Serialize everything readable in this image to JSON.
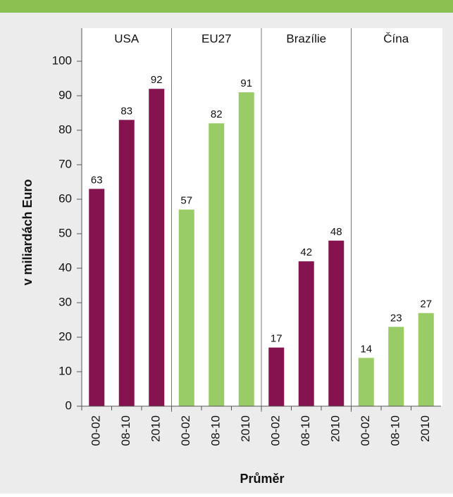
{
  "chart_data": {
    "type": "bar",
    "y_axis_label": "v miliardách Euro",
    "x_axis_label": "Průměr",
    "categories": [
      "00-02",
      "08-10",
      "2010"
    ],
    "series": [
      {
        "name": "USA",
        "color": "#85134f",
        "values": [
          63,
          83,
          92
        ]
      },
      {
        "name": "EU27",
        "color": "#99cc66",
        "values": [
          57,
          82,
          91
        ]
      },
      {
        "name": "Brazílie",
        "color": "#85134f",
        "values": [
          17,
          42,
          48
        ]
      },
      {
        "name": "Čína",
        "color": "#99cc66",
        "values": [
          14,
          23,
          27
        ]
      }
    ],
    "ylim": [
      0,
      100
    ],
    "yticks": [
      0,
      10,
      20,
      30,
      40,
      50,
      60,
      70,
      80,
      90,
      100
    ],
    "grid": false
  }
}
